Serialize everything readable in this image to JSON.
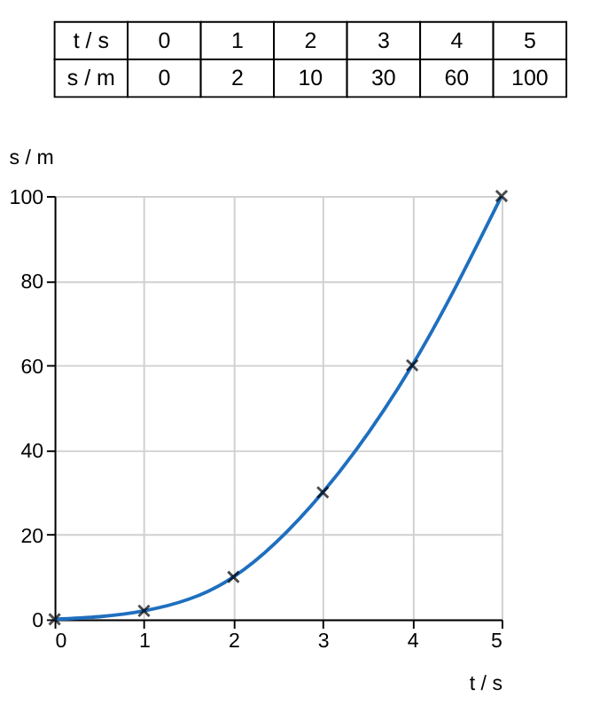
{
  "chart_data": {
    "type": "line",
    "xlabel": "t / s",
    "ylabel": "s / m",
    "x": [
      0,
      1,
      2,
      3,
      4,
      5
    ],
    "series": [
      {
        "color": "#1f6fbf",
        "values": [
          0,
          2,
          10,
          30,
          60,
          100
        ]
      }
    ],
    "xlim": [
      0,
      5
    ],
    "xticks": [
      0,
      1,
      2,
      3,
      4,
      5
    ],
    "ylim": [
      0,
      100
    ],
    "yticks": [
      0,
      20,
      40,
      60,
      80,
      100
    ],
    "grid": true,
    "marker": "cross",
    "line_style": "solid",
    "annotations": [
      "0",
      "1",
      "2",
      "3",
      "4",
      "5",
      "0",
      "2",
      "10",
      "30",
      "60",
      "100"
    ]
  }
}
